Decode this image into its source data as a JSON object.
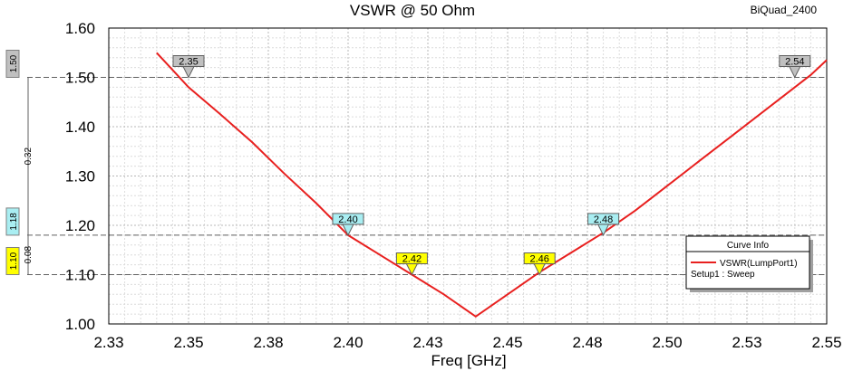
{
  "design_name": "BiQuad_2400",
  "chart_data": {
    "type": "line",
    "title": "VSWR @ 50 Ohm",
    "xlabel": "Freq [GHz]",
    "ylabel": "",
    "xlim": [
      2.325,
      2.55
    ],
    "ylim": [
      1.0,
      1.6
    ],
    "x_ticks": [
      2.325,
      2.35,
      2.375,
      2.4,
      2.425,
      2.45,
      2.475,
      2.5,
      2.525,
      2.55
    ],
    "x_tick_labels": [
      "2.33",
      "2.35",
      "2.38",
      "2.40",
      "2.43",
      "2.45",
      "2.48",
      "2.50",
      "2.53",
      "2.55"
    ],
    "y_ticks": [
      1.0,
      1.1,
      1.2,
      1.3,
      1.4,
      1.5,
      1.6
    ],
    "y_tick_labels": [
      "1.00",
      "1.10",
      "1.20",
      "1.30",
      "1.40",
      "1.50",
      "1.60"
    ],
    "grid": true,
    "series": [
      {
        "name": "VSWR(LumpPort1)",
        "color": "#e8201f",
        "x": [
          2.34,
          2.345,
          2.35,
          2.36,
          2.37,
          2.38,
          2.39,
          2.4,
          2.41,
          2.42,
          2.43,
          2.44,
          2.45,
          2.46,
          2.47,
          2.48,
          2.49,
          2.5,
          2.51,
          2.52,
          2.53,
          2.54,
          2.545,
          2.55
        ],
        "values": [
          1.55,
          1.515,
          1.48,
          1.425,
          1.368,
          1.305,
          1.245,
          1.18,
          1.14,
          1.1,
          1.06,
          1.015,
          1.06,
          1.105,
          1.145,
          1.185,
          1.23,
          1.28,
          1.33,
          1.38,
          1.43,
          1.48,
          1.505,
          1.535
        ]
      }
    ],
    "markers": [
      {
        "label": "2.35",
        "x": 2.35,
        "y": 1.5,
        "color": "#c0c0c0"
      },
      {
        "label": "2.40",
        "x": 2.4,
        "y": 1.18,
        "color": "#a9eef2"
      },
      {
        "label": "2.42",
        "x": 2.42,
        "y": 1.1,
        "color": "#ffff00"
      },
      {
        "label": "2.46",
        "x": 2.46,
        "y": 1.1,
        "color": "#ffff00"
      },
      {
        "label": "2.48",
        "x": 2.48,
        "y": 1.18,
        "color": "#a9eef2"
      },
      {
        "label": "2.54",
        "x": 2.54,
        "y": 1.5,
        "color": "#c0c0c0"
      }
    ],
    "reference_lines": [
      {
        "y": 1.5,
        "label": "1.50",
        "color": "#c0c0c0"
      },
      {
        "y": 1.18,
        "label": "1.18",
        "color": "#a9eef2"
      },
      {
        "y": 1.1,
        "label": "1.10",
        "color": "#ffff00"
      }
    ],
    "delta_labels": [
      {
        "label": "0.32",
        "from": 1.5,
        "to": 1.18
      },
      {
        "label": "0.08",
        "from": 1.18,
        "to": 1.1
      }
    ],
    "legend": {
      "title": "Curve Info",
      "entries": [
        {
          "label": "VSWR(LumpPort1)",
          "color": "#e8201f"
        }
      ],
      "setup": "Setup1 : Sweep",
      "placement": "right"
    }
  }
}
